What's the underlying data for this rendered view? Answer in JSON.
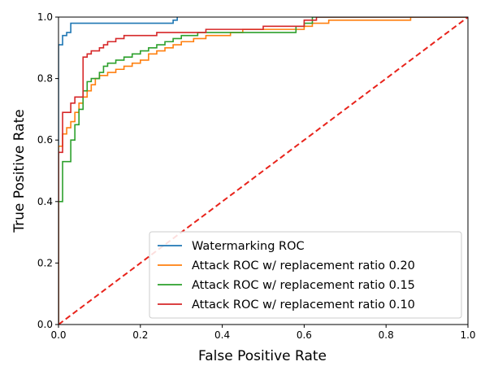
{
  "chart_data": {
    "type": "line",
    "xlabel": "False Positive Rate",
    "ylabel": "True Positive Rate",
    "xlim": [
      0.0,
      1.0
    ],
    "ylim": [
      0.0,
      1.0
    ],
    "xticks": [
      "0.0",
      "0.2",
      "0.4",
      "0.6",
      "0.8",
      "1.0"
    ],
    "yticks": [
      "0.0",
      "0.2",
      "0.4",
      "0.6",
      "0.8",
      "1.0"
    ],
    "grid": false,
    "legend_position": "lower-right",
    "series": [
      {
        "name": "Watermarking ROC",
        "color": "#1f77b4",
        "dash": false,
        "x": [
          0.0,
          0.0,
          0.01,
          0.01,
          0.02,
          0.02,
          0.03,
          0.03,
          0.06,
          0.06,
          0.28,
          0.28,
          0.29,
          0.29
        ],
        "y": [
          0.0,
          0.91,
          0.91,
          0.94,
          0.94,
          0.95,
          0.95,
          0.98,
          0.98,
          0.98,
          0.98,
          0.99,
          0.99,
          1.0
        ]
      },
      {
        "name": "Attack ROC w/ replacement ratio 0.20",
        "color": "#ff7f0e",
        "dash": false,
        "x": [
          0.0,
          0.0,
          0.01,
          0.01,
          0.02,
          0.02,
          0.03,
          0.03,
          0.04,
          0.04,
          0.05,
          0.05,
          0.06,
          0.06,
          0.07,
          0.07,
          0.08,
          0.08,
          0.09,
          0.09,
          0.1,
          0.1,
          0.12,
          0.12,
          0.14,
          0.14,
          0.16,
          0.16,
          0.18,
          0.18,
          0.2,
          0.2,
          0.22,
          0.22,
          0.24,
          0.24,
          0.26,
          0.26,
          0.28,
          0.28,
          0.3,
          0.3,
          0.33,
          0.33,
          0.36,
          0.36,
          0.42,
          0.42,
          0.45,
          0.45,
          0.6,
          0.6,
          0.62,
          0.62,
          0.64,
          0.64,
          0.66,
          0.66,
          0.86,
          0.86,
          1.0
        ],
        "y": [
          0.0,
          0.58,
          0.58,
          0.62,
          0.62,
          0.64,
          0.64,
          0.66,
          0.66,
          0.69,
          0.69,
          0.72,
          0.72,
          0.74,
          0.74,
          0.76,
          0.76,
          0.78,
          0.78,
          0.8,
          0.8,
          0.81,
          0.81,
          0.82,
          0.82,
          0.83,
          0.83,
          0.84,
          0.84,
          0.85,
          0.85,
          0.86,
          0.86,
          0.88,
          0.88,
          0.89,
          0.89,
          0.9,
          0.9,
          0.91,
          0.91,
          0.92,
          0.92,
          0.93,
          0.93,
          0.94,
          0.94,
          0.95,
          0.95,
          0.96,
          0.96,
          0.97,
          0.97,
          0.98,
          0.98,
          0.98,
          0.98,
          0.99,
          0.99,
          1.0,
          1.0
        ]
      },
      {
        "name": "Attack ROC w/ replacement ratio 0.15",
        "color": "#2ca02c",
        "dash": false,
        "x": [
          0.0,
          0.0,
          0.01,
          0.01,
          0.03,
          0.03,
          0.04,
          0.04,
          0.05,
          0.05,
          0.06,
          0.06,
          0.07,
          0.07,
          0.08,
          0.08,
          0.1,
          0.1,
          0.11,
          0.11,
          0.12,
          0.12,
          0.14,
          0.14,
          0.16,
          0.16,
          0.18,
          0.18,
          0.2,
          0.2,
          0.22,
          0.22,
          0.24,
          0.24,
          0.26,
          0.26,
          0.28,
          0.28,
          0.3,
          0.3,
          0.34,
          0.34,
          0.38,
          0.38,
          0.44,
          0.44,
          0.58,
          0.58,
          0.6,
          0.6,
          0.62,
          0.62,
          1.0
        ],
        "y": [
          0.0,
          0.4,
          0.4,
          0.53,
          0.53,
          0.6,
          0.6,
          0.65,
          0.65,
          0.7,
          0.7,
          0.76,
          0.76,
          0.79,
          0.79,
          0.8,
          0.8,
          0.82,
          0.82,
          0.84,
          0.84,
          0.85,
          0.85,
          0.86,
          0.86,
          0.87,
          0.87,
          0.88,
          0.88,
          0.89,
          0.89,
          0.9,
          0.9,
          0.91,
          0.91,
          0.92,
          0.92,
          0.93,
          0.93,
          0.94,
          0.94,
          0.95,
          0.95,
          0.95,
          0.95,
          0.95,
          0.95,
          0.97,
          0.97,
          0.98,
          0.98,
          1.0,
          1.0
        ]
      },
      {
        "name": "Attack ROC w/ replacement ratio 0.10",
        "color": "#d62728",
        "dash": false,
        "x": [
          0.0,
          0.0,
          0.01,
          0.01,
          0.03,
          0.03,
          0.04,
          0.04,
          0.06,
          0.06,
          0.07,
          0.07,
          0.08,
          0.08,
          0.1,
          0.1,
          0.11,
          0.11,
          0.12,
          0.12,
          0.14,
          0.14,
          0.15,
          0.15,
          0.16,
          0.16,
          0.2,
          0.2,
          0.24,
          0.24,
          0.28,
          0.28,
          0.36,
          0.36,
          0.5,
          0.5,
          0.6,
          0.6,
          0.63,
          0.63,
          1.0
        ],
        "y": [
          0.0,
          0.56,
          0.56,
          0.69,
          0.69,
          0.72,
          0.72,
          0.74,
          0.74,
          0.87,
          0.87,
          0.88,
          0.88,
          0.89,
          0.89,
          0.9,
          0.9,
          0.91,
          0.91,
          0.92,
          0.92,
          0.93,
          0.93,
          0.93,
          0.93,
          0.94,
          0.94,
          0.94,
          0.94,
          0.95,
          0.95,
          0.95,
          0.95,
          0.96,
          0.96,
          0.97,
          0.97,
          0.99,
          0.99,
          1.0,
          1.0
        ]
      }
    ],
    "reference_line": {
      "x": [
        0.0,
        1.0
      ],
      "y": [
        0.0,
        1.0
      ],
      "color": "#e8231b",
      "dash": true
    }
  }
}
